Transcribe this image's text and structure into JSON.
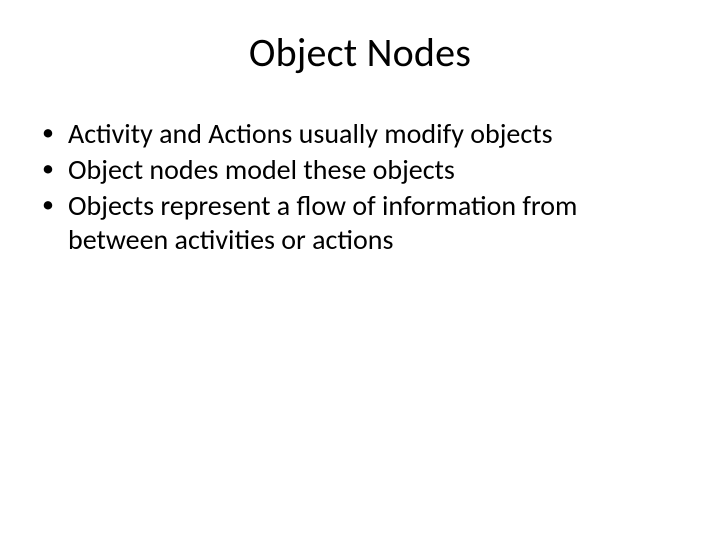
{
  "slide": {
    "title": "Object Nodes",
    "bullets": [
      "Activity and Actions usually modify objects",
      "Object nodes model these objects",
      "Objects represent a flow of information from between activities or actions"
    ],
    "title_fontsize": 40,
    "body_fontsize": 28,
    "background_color": "#ffffff",
    "text_color": "#000000",
    "font_family": "Calibri"
  }
}
